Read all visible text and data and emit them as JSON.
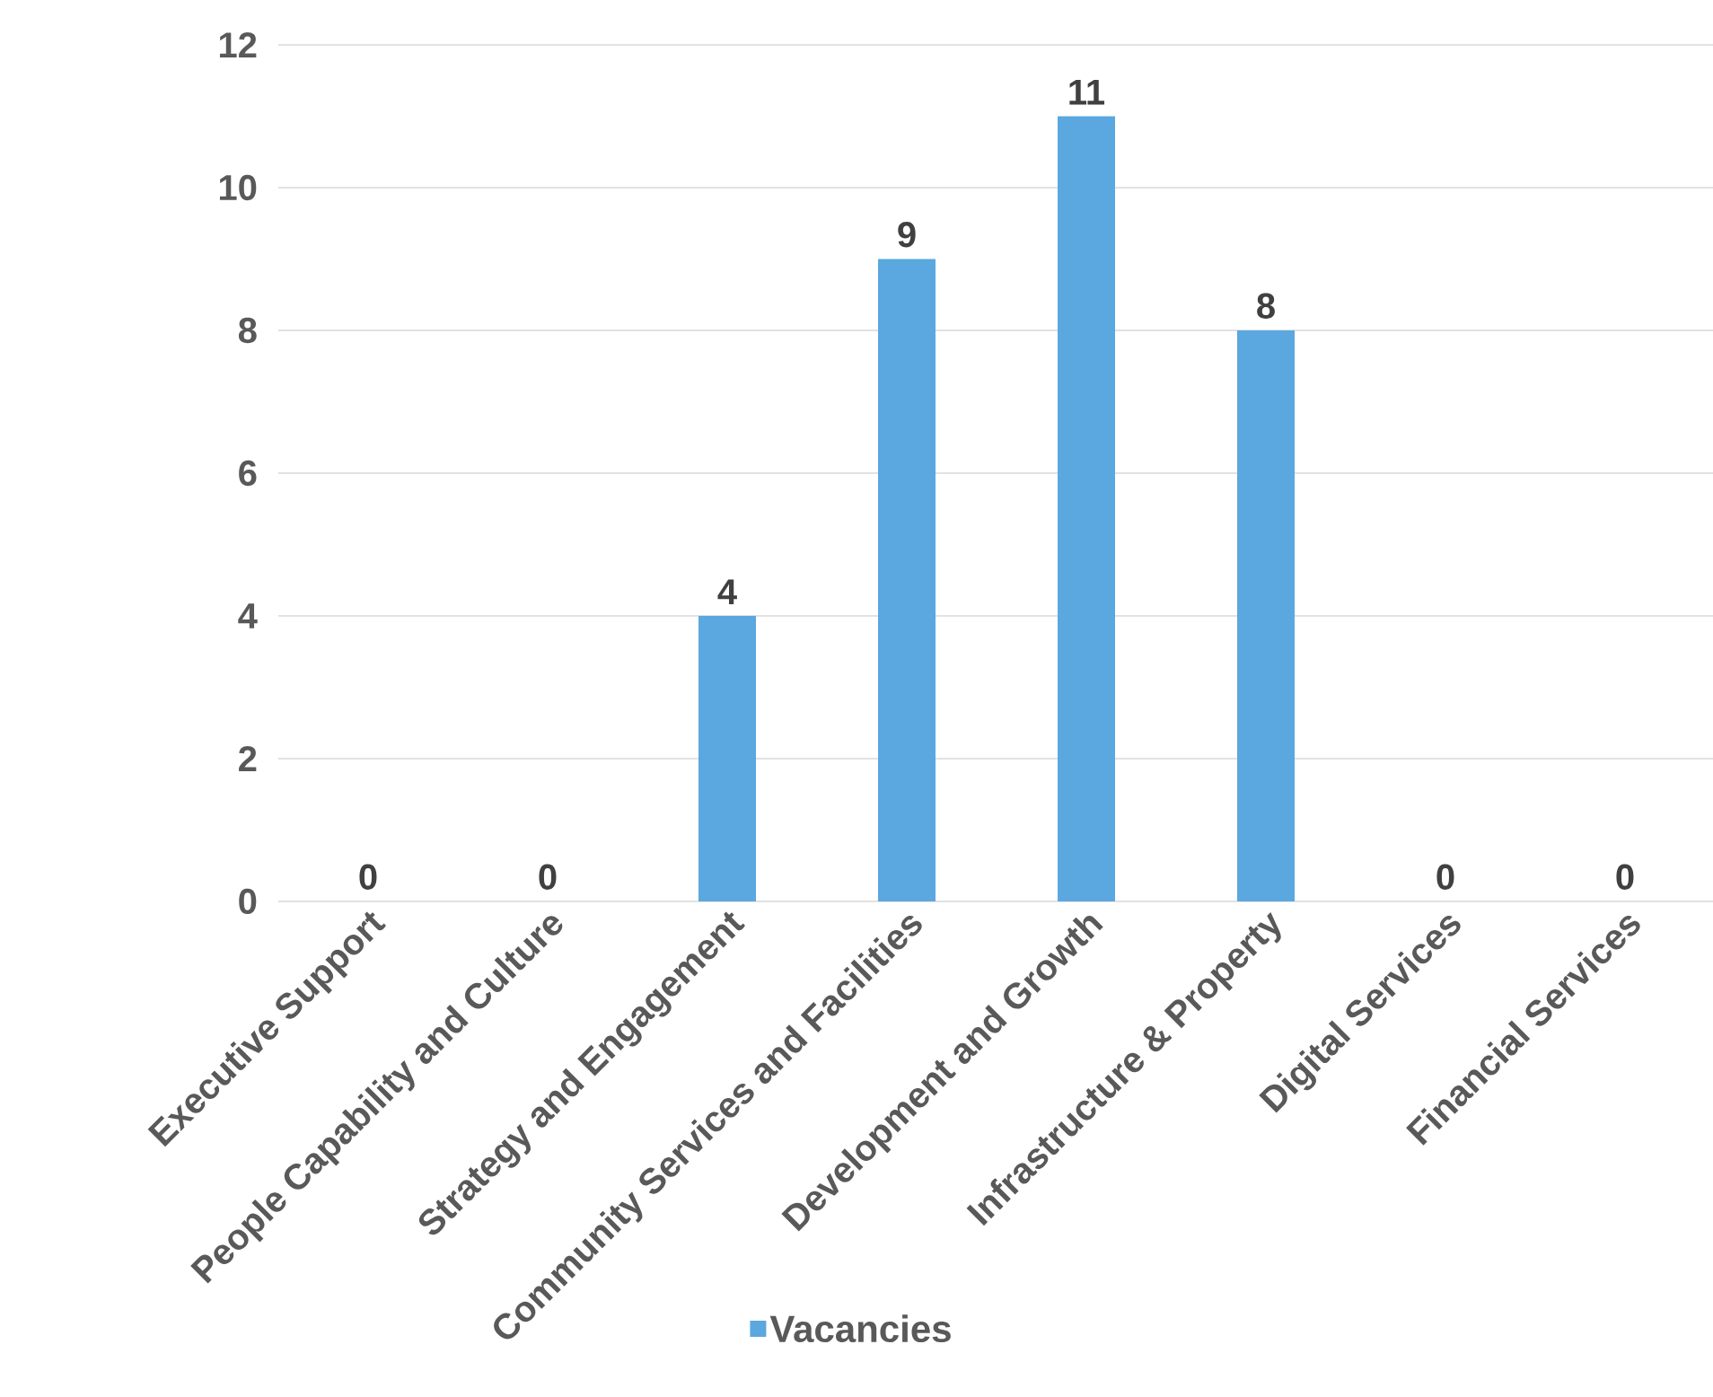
{
  "chart_data": {
    "type": "bar",
    "categories": [
      "Executive Support",
      "People Capability and Culture",
      "Strategy and Engagement",
      "Community Services and Facilities",
      "Development and Growth",
      "Infrastructure & Property",
      "Digital Services",
      "Financial Services"
    ],
    "series": [
      {
        "name": "Vacancies",
        "color": "#5ba7df",
        "values": [
          0,
          0,
          4,
          9,
          11,
          8,
          0,
          0
        ]
      }
    ],
    "ylim": [
      0,
      12
    ],
    "yticks": [
      0,
      2,
      4,
      6,
      8,
      10,
      12
    ],
    "data_labels": true,
    "grid": "y",
    "legend": "bottom"
  }
}
